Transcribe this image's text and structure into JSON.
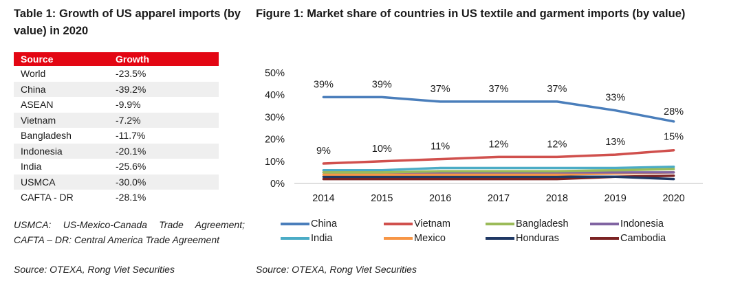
{
  "table": {
    "title": "Table 1: Growth of US apparel imports (by value) in 2020",
    "headers": [
      "Source",
      "Growth"
    ],
    "rows": [
      [
        "World",
        "-23.5%"
      ],
      [
        "China",
        "-39.2%"
      ],
      [
        "ASEAN",
        "-9.9%"
      ],
      [
        "Vietnam",
        "-7.2%"
      ],
      [
        "Bangladesh",
        "-11.7%"
      ],
      [
        "Indonesia",
        "-20.1%"
      ],
      [
        "India",
        "-25.6%"
      ],
      [
        "USMCA",
        "-30.0%"
      ],
      [
        "CAFTA - DR",
        "-28.1%"
      ]
    ],
    "notes": "USMCA: US-Mexico-Canada Trade Agreement; CAFTA – DR: Central America Trade Agreement",
    "source": "Source: OTEXA, Rong Viet Securities"
  },
  "figure": {
    "title": "Figure 1: Market share of countries in US textile and garment imports (by value)",
    "source": "Source: OTEXA, Rong Viet Securities"
  },
  "chart_data": {
    "type": "line",
    "x": [
      "2014",
      "2015",
      "2016",
      "2017",
      "2018",
      "2019",
      "2020"
    ],
    "ylim": [
      0,
      50
    ],
    "yticks": [
      "0%",
      "10%",
      "20%",
      "30%",
      "40%",
      "50%"
    ],
    "grid": false,
    "legend_position": "bottom",
    "series": [
      {
        "name": "China",
        "color": "#4a7ebb",
        "values": [
          39,
          39,
          37,
          37,
          37,
          33,
          28
        ],
        "labels": [
          "39%",
          "39%",
          "37%",
          "37%",
          "37%",
          "33%",
          "28%"
        ]
      },
      {
        "name": "Vietnam",
        "color": "#d0504d",
        "values": [
          9,
          10,
          11,
          12,
          12,
          13,
          15
        ],
        "labels": [
          "9%",
          "10%",
          "11%",
          "12%",
          "12%",
          "13%",
          "15%"
        ]
      },
      {
        "name": "Bangladesh",
        "color": "#9bbb59",
        "values": [
          5,
          5,
          5.5,
          5.5,
          5.5,
          6,
          6.5
        ]
      },
      {
        "name": "Indonesia",
        "color": "#8064a2",
        "values": [
          5,
          5,
          5,
          5,
          5,
          5,
          5
        ]
      },
      {
        "name": "India",
        "color": "#4bacc6",
        "values": [
          6,
          6,
          7,
          7,
          7,
          7,
          7.5
        ]
      },
      {
        "name": "Mexico",
        "color": "#f79646",
        "values": [
          4,
          4,
          4,
          4,
          4,
          4.5,
          5
        ]
      },
      {
        "name": "Honduras",
        "color": "#1f3864",
        "values": [
          3,
          3,
          3,
          3,
          3,
          3,
          2
        ]
      },
      {
        "name": "Cambodia",
        "color": "#7b2323",
        "values": [
          2,
          2,
          2,
          2,
          2,
          3,
          3.5
        ]
      }
    ]
  }
}
